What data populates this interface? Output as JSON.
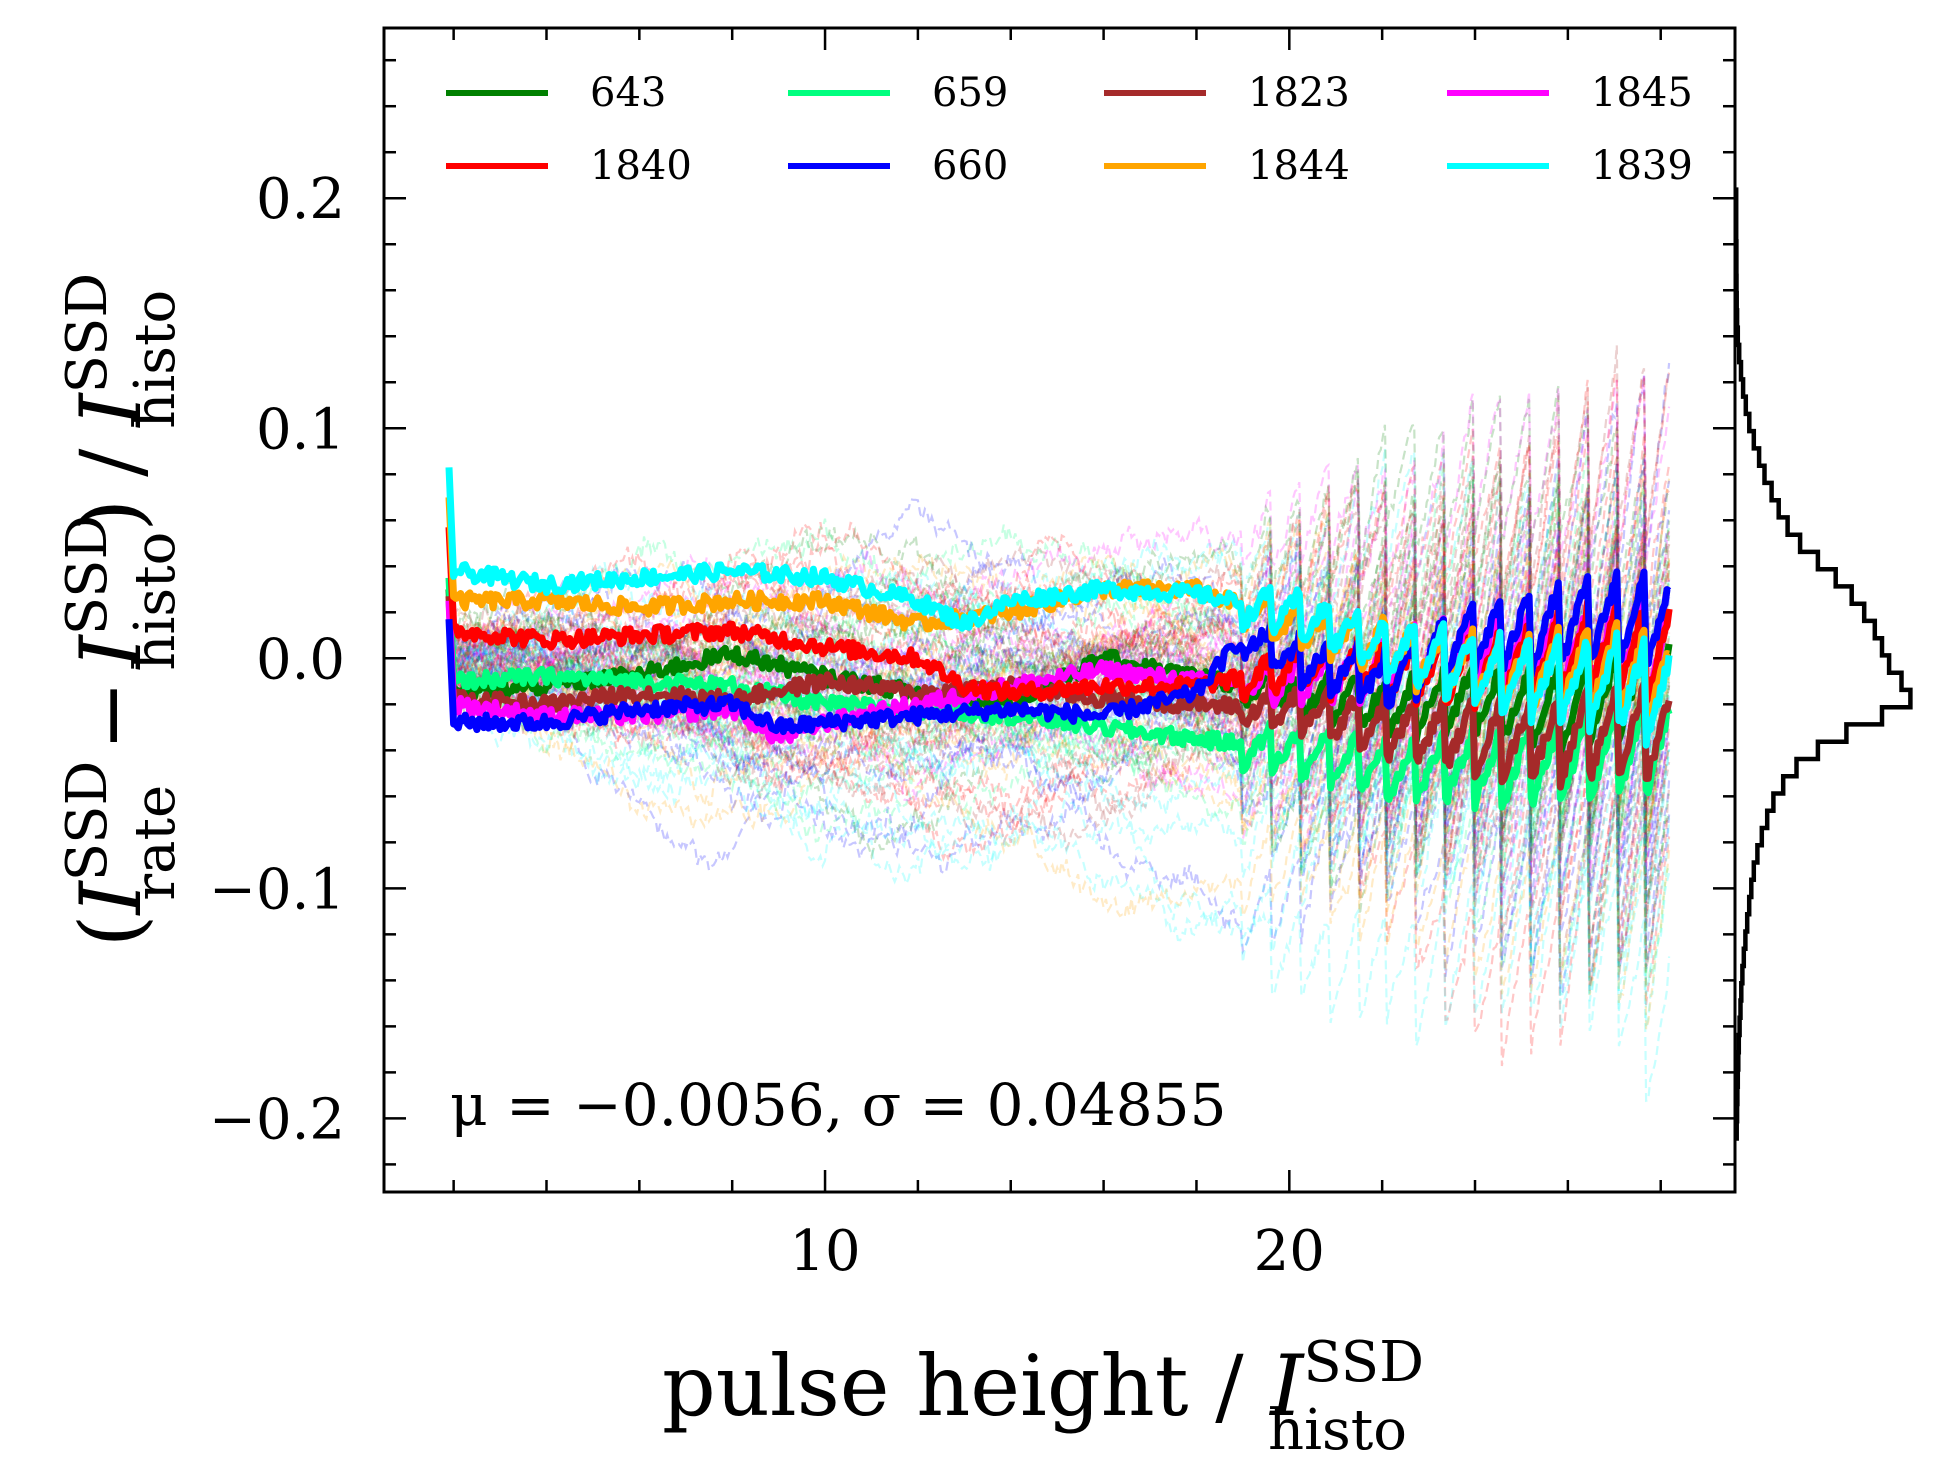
{
  "chart_data": {
    "type": "line",
    "xlabel": {
      "prefix": "pulse height / ",
      "symbol": "I",
      "sup": "SSD",
      "sub": "histo"
    },
    "ylabel": {
      "open": "(",
      "sym1": "I",
      "sup1": "SSD",
      "sub1": "rate",
      "minus": "−",
      "sym2": "I",
      "sup2": "SSD",
      "sub2": "histo",
      "close": ")",
      "slash": "/",
      "sym3": "I",
      "sup3": "SSD",
      "sub3": "histo"
    },
    "xlim": [
      0.5,
      29.6
    ],
    "ylim": [
      -0.232,
      0.274
    ],
    "xticks": [
      10,
      20
    ],
    "xtick_labels": [
      "10",
      "20"
    ],
    "yticks": [
      -0.2,
      -0.1,
      0.0,
      0.1,
      0.2
    ],
    "ytick_labels": [
      "−0.2",
      "−0.1",
      "0.0",
      "0.1",
      "0.2"
    ],
    "legend": {
      "placement": "upper, 4 columns",
      "entries": [
        {
          "name": "643",
          "color": "#008000"
        },
        {
          "name": "659",
          "color": "#00ff7f"
        },
        {
          "name": "1823",
          "color": "#a52a2a"
        },
        {
          "name": "1845",
          "color": "#ff00ff"
        },
        {
          "name": "1840",
          "color": "#ff0000"
        },
        {
          "name": "660",
          "color": "#0000ff"
        },
        {
          "name": "1844",
          "color": "#ffa500"
        },
        {
          "name": "1839",
          "color": "#00ffff"
        }
      ]
    },
    "annotation": "μ = −0.0056, σ = 0.04855",
    "series": [
      {
        "name": "643",
        "color": "#008000",
        "points": [
          [
            2.0,
            -0.015
          ],
          [
            4,
            -0.012
          ],
          [
            6,
            -0.007
          ],
          [
            8,
            0.002
          ],
          [
            10,
            -0.008
          ],
          [
            12,
            -0.015
          ],
          [
            14,
            -0.02
          ],
          [
            16,
            0.0
          ],
          [
            18,
            -0.008
          ],
          [
            20,
            -0.015
          ],
          [
            22,
            -0.022
          ],
          [
            24,
            -0.018
          ],
          [
            26,
            -0.022
          ],
          [
            28.2,
            -0.01
          ]
        ]
      },
      {
        "name": "659",
        "color": "#00ff7f",
        "points": [
          [
            2.0,
            -0.01
          ],
          [
            4,
            -0.008
          ],
          [
            6,
            -0.01
          ],
          [
            8,
            -0.012
          ],
          [
            10,
            -0.02
          ],
          [
            12,
            -0.022
          ],
          [
            14,
            -0.025
          ],
          [
            16,
            -0.03
          ],
          [
            18,
            -0.035
          ],
          [
            20,
            -0.04
          ],
          [
            22,
            -0.048
          ],
          [
            24,
            -0.048
          ],
          [
            26,
            -0.045
          ],
          [
            28.2,
            -0.035
          ]
        ]
      },
      {
        "name": "1823",
        "color": "#a52a2a",
        "points": [
          [
            2.0,
            -0.018
          ],
          [
            4,
            -0.02
          ],
          [
            6,
            -0.015
          ],
          [
            8,
            -0.018
          ],
          [
            10,
            -0.01
          ],
          [
            12,
            -0.015
          ],
          [
            14,
            -0.012
          ],
          [
            16,
            -0.018
          ],
          [
            18,
            -0.02
          ],
          [
            20,
            -0.022
          ],
          [
            22,
            -0.03
          ],
          [
            24,
            -0.035
          ],
          [
            26,
            -0.035
          ],
          [
            28.2,
            -0.03
          ]
        ]
      },
      {
        "name": "1845",
        "color": "#ff00ff",
        "points": [
          [
            2.0,
            -0.02
          ],
          [
            4,
            -0.025
          ],
          [
            6,
            -0.025
          ],
          [
            8,
            -0.022
          ],
          [
            9,
            -0.035
          ],
          [
            10,
            -0.028
          ],
          [
            12,
            -0.02
          ],
          [
            14,
            -0.012
          ],
          [
            16,
            -0.005
          ],
          [
            18,
            -0.01
          ],
          [
            20,
            -0.01
          ],
          [
            22,
            -0.005
          ],
          [
            24,
            0.005
          ],
          [
            26,
            0.005
          ],
          [
            28.2,
            0.005
          ]
        ]
      },
      {
        "name": "1840",
        "color": "#ff0000",
        "points": [
          [
            2.0,
            0.012
          ],
          [
            4,
            0.008
          ],
          [
            6,
            0.01
          ],
          [
            8,
            0.012
          ],
          [
            10,
            0.005
          ],
          [
            12,
            0.0
          ],
          [
            13,
            -0.012
          ],
          [
            14,
            -0.015
          ],
          [
            16,
            -0.012
          ],
          [
            18,
            -0.012
          ],
          [
            20,
            -0.005
          ],
          [
            22,
            -0.005
          ],
          [
            24,
            -0.005
          ],
          [
            26,
            0.002
          ],
          [
            28.2,
            0.005
          ]
        ]
      },
      {
        "name": "660",
        "color": "#0000ff",
        "points": [
          [
            2.0,
            -0.028
          ],
          [
            4,
            -0.028
          ],
          [
            6,
            -0.022
          ],
          [
            8,
            -0.02
          ],
          [
            9,
            -0.03
          ],
          [
            10,
            -0.028
          ],
          [
            12,
            -0.025
          ],
          [
            14,
            -0.022
          ],
          [
            16,
            -0.025
          ],
          [
            18,
            -0.015
          ],
          [
            19,
            0.01
          ],
          [
            20,
            0.0
          ],
          [
            22,
            -0.01
          ],
          [
            24,
            0.01
          ],
          [
            26,
            0.015
          ],
          [
            28.2,
            0.018
          ]
        ]
      },
      {
        "name": "1844",
        "color": "#ffa500",
        "points": [
          [
            2.0,
            0.025
          ],
          [
            4,
            0.025
          ],
          [
            6,
            0.022
          ],
          [
            8,
            0.025
          ],
          [
            10,
            0.025
          ],
          [
            12,
            0.015
          ],
          [
            14,
            0.02
          ],
          [
            16,
            0.03
          ],
          [
            18,
            0.03
          ],
          [
            20,
            0.015
          ],
          [
            22,
            0.005
          ],
          [
            24,
            -0.005
          ],
          [
            26,
            -0.005
          ],
          [
            28.2,
            -0.01
          ]
        ]
      },
      {
        "name": "1839",
        "color": "#00ffff",
        "points": [
          [
            2.0,
            0.038
          ],
          [
            4,
            0.032
          ],
          [
            6,
            0.035
          ],
          [
            8,
            0.038
          ],
          [
            10,
            0.035
          ],
          [
            12,
            0.025
          ],
          [
            13,
            0.015
          ],
          [
            14,
            0.025
          ],
          [
            16,
            0.03
          ],
          [
            18,
            0.028
          ],
          [
            20,
            0.02
          ],
          [
            22,
            0.005
          ],
          [
            24,
            -0.005
          ],
          [
            26,
            -0.01
          ],
          [
            28.2,
            -0.015
          ]
        ]
      }
    ],
    "background_traces": {
      "style": "dashed, translucent",
      "colors": [
        "#008000",
        "#00ff7f",
        "#a52a2a",
        "#ff00ff",
        "#ff0000",
        "#0000ff",
        "#ffa500",
        "#00ffff"
      ],
      "count": 88
    },
    "marginal_histogram": {
      "orientation": "horizontal",
      "bin_width": 0.0075,
      "bins": [
        [
          -0.205,
          0.004
        ],
        [
          -0.1975,
          0.006
        ],
        [
          -0.19,
          0.008
        ],
        [
          -0.1825,
          0.01
        ],
        [
          -0.175,
          0.013
        ],
        [
          -0.1675,
          0.016
        ],
        [
          -0.16,
          0.02
        ],
        [
          -0.1525,
          0.025
        ],
        [
          -0.145,
          0.03
        ],
        [
          -0.1375,
          0.036
        ],
        [
          -0.13,
          0.044
        ],
        [
          -0.1225,
          0.053
        ],
        [
          -0.115,
          0.063
        ],
        [
          -0.1075,
          0.074
        ],
        [
          -0.1,
          0.086
        ],
        [
          -0.0925,
          0.1
        ],
        [
          -0.085,
          0.12
        ],
        [
          -0.0775,
          0.145
        ],
        [
          -0.07,
          0.175
        ],
        [
          -0.0625,
          0.21
        ],
        [
          -0.055,
          0.265
        ],
        [
          -0.0475,
          0.34
        ],
        [
          -0.04,
          0.46
        ],
        [
          -0.0325,
          0.62
        ],
        [
          -0.025,
          0.82
        ],
        [
          -0.0175,
          0.98
        ],
        [
          -0.01,
          0.93
        ],
        [
          -0.0025,
          0.86
        ],
        [
          0.005,
          0.82
        ],
        [
          0.0125,
          0.78
        ],
        [
          0.02,
          0.72
        ],
        [
          0.0275,
          0.65
        ],
        [
          0.035,
          0.56
        ],
        [
          0.0425,
          0.46
        ],
        [
          0.05,
          0.36
        ],
        [
          0.0575,
          0.29
        ],
        [
          0.065,
          0.24
        ],
        [
          0.0725,
          0.2
        ],
        [
          0.08,
          0.16
        ],
        [
          0.0875,
          0.13
        ],
        [
          0.095,
          0.1
        ],
        [
          0.1025,
          0.075
        ],
        [
          0.11,
          0.055
        ],
        [
          0.1175,
          0.04
        ],
        [
          0.125,
          0.028
        ],
        [
          0.1325,
          0.018
        ],
        [
          0.14,
          0.01
        ],
        [
          0.1475,
          0.006
        ],
        [
          0.155,
          0.004
        ],
        [
          0.1625,
          0.003
        ],
        [
          0.17,
          0.002
        ],
        [
          0.1775,
          0.002
        ],
        [
          0.185,
          0.001
        ],
        [
          0.1925,
          0.001
        ],
        [
          0.2,
          0.001
        ]
      ]
    }
  }
}
